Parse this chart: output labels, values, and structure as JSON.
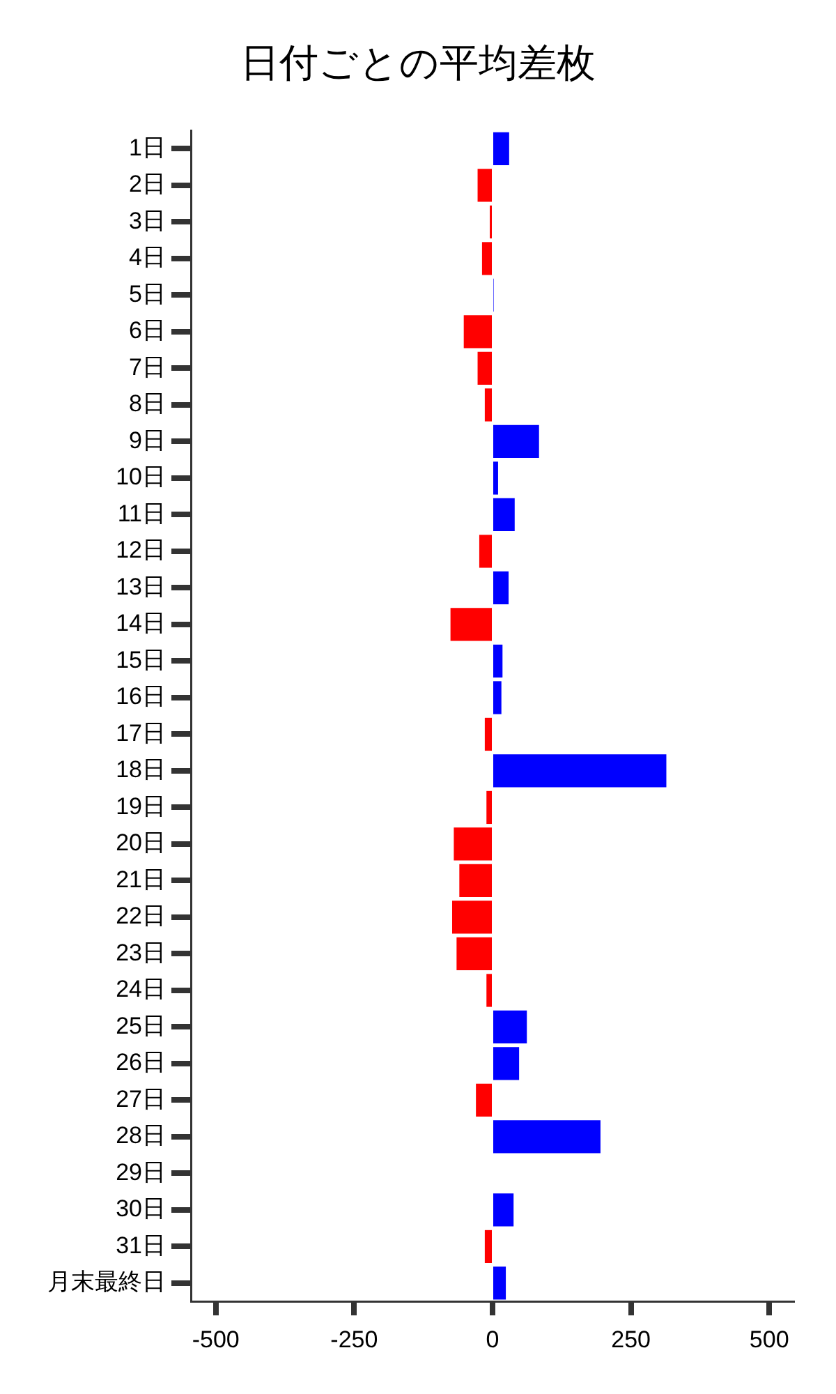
{
  "chart_data": {
    "type": "bar",
    "orientation": "horizontal",
    "title": "日付ごとの平均差枚",
    "categories": [
      "1日",
      "2日",
      "3日",
      "4日",
      "5日",
      "6日",
      "7日",
      "8日",
      "9日",
      "10日",
      "11日",
      "12日",
      "13日",
      "14日",
      "15日",
      "16日",
      "17日",
      "18日",
      "19日",
      "20日",
      "21日",
      "22日",
      "23日",
      "24日",
      "25日",
      "26日",
      "27日",
      "28日",
      "29日",
      "30日",
      "31日",
      "月末最終日"
    ],
    "values": [
      30,
      -27,
      -5,
      -19,
      2,
      -52,
      -27,
      -14,
      84,
      10,
      40,
      -24,
      29,
      -76,
      18,
      16,
      -14,
      314,
      -11,
      -70,
      -60,
      -73,
      -65,
      -11,
      62,
      48,
      -30,
      195,
      0,
      38,
      -14,
      24
    ],
    "colors": [
      "#0000ff",
      "#ff0000",
      "#ff0000",
      "#ff0000",
      "#0000ff",
      "#ff0000",
      "#ff0000",
      "#ff0000",
      "#0000ff",
      "#0000ff",
      "#0000ff",
      "#ff0000",
      "#0000ff",
      "#ff0000",
      "#0000ff",
      "#0000ff",
      "#ff0000",
      "#0000ff",
      "#ff0000",
      "#ff0000",
      "#ff0000",
      "#ff0000",
      "#ff0000",
      "#ff0000",
      "#0000ff",
      "#0000ff",
      "#ff0000",
      "#0000ff",
      "#0000ff",
      "#0000ff",
      "#ff0000",
      "#0000ff"
    ],
    "xlim": [
      -545,
      545
    ],
    "xticks": [
      -500,
      -250,
      0,
      250,
      500
    ],
    "grid": false,
    "legend": false
  }
}
